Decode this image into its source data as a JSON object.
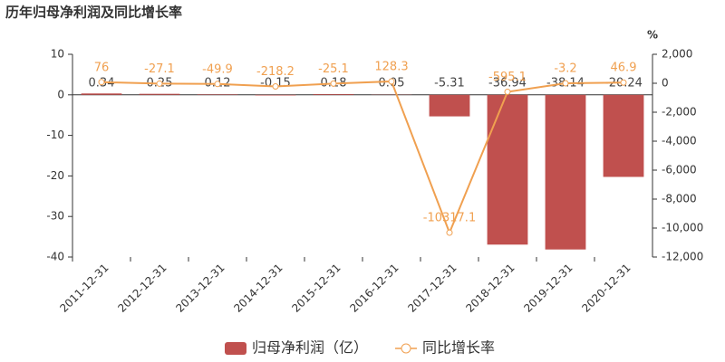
{
  "chart_data": {
    "type": "combo",
    "title": "历年归母净利润及同比增长率",
    "y2label": "%",
    "categories": [
      "2011-12-31",
      "2012-12-31",
      "2013-12-31",
      "2014-12-31",
      "2015-12-31",
      "2016-12-31",
      "2017-12-31",
      "2018-12-31",
      "2019-12-31",
      "2020-12-31"
    ],
    "series": [
      {
        "name": "归母净利润（亿）",
        "type": "bar",
        "color": "#c0504e",
        "values": [
          0.34,
          0.25,
          0.12,
          -0.15,
          0.18,
          0.05,
          -5.31,
          -36.94,
          -38.14,
          -20.24
        ]
      },
      {
        "name": "同比增长率",
        "type": "line",
        "axis": "y2",
        "color": "#f0a050",
        "values": [
          76,
          -27.1,
          -49.9,
          -218.2,
          -25.1,
          128.3,
          -10317.1,
          -595.1,
          -3.2,
          46.9
        ]
      }
    ],
    "ylim": [
      -40,
      10
    ],
    "yticks": [
      10,
      0,
      -10,
      -20,
      -30,
      -40
    ],
    "y2lim": [
      -12000,
      2000
    ],
    "y2ticks": [
      {
        "value": 2000,
        "label": "2,000"
      },
      0,
      {
        "value": -2000,
        "label": "-2,000"
      },
      {
        "value": -4000,
        "label": "-4,000"
      },
      {
        "value": -6000,
        "label": "-6,000"
      },
      {
        "value": -8000,
        "label": "-8,000"
      },
      {
        "value": -10000,
        "label": "-10,000"
      },
      {
        "value": -12000,
        "label": "-12,000"
      }
    ]
  }
}
